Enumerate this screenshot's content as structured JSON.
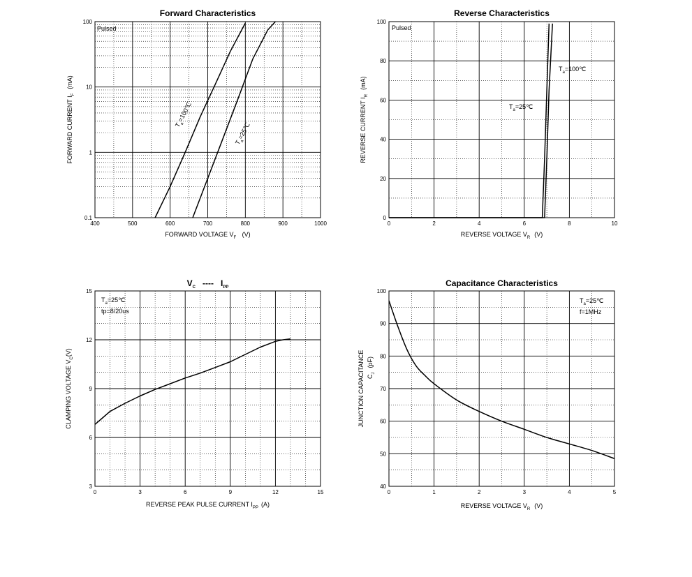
{
  "chart_data": [
    {
      "type": "line",
      "title": "Forward   Characteristics",
      "xlabel": "FORWARD VOLTAGE    V",
      "xlabel_sub": "F",
      "xlabel_unit": "(V)",
      "ylabel": "FORWARD CURRENT    I",
      "ylabel_sub": "F",
      "ylabel_unit": "(mA)",
      "yscale": "log",
      "xlim": [
        400,
        1000
      ],
      "ylim": [
        0.1,
        100
      ],
      "x_ticks": [
        "400",
        "500",
        "600",
        "700",
        "800",
        "900",
        "1000"
      ],
      "y_ticks": [
        "0.1",
        "1",
        "10",
        "100"
      ],
      "note": "Pulsed",
      "series": [
        {
          "label_main": "T",
          "label_sub": "a",
          "label_rest": "=100℃",
          "x": [
            560,
            600,
            640,
            680,
            720,
            760,
            800
          ],
          "y": [
            0.1,
            0.3,
            1,
            3.5,
            11,
            35,
            95
          ]
        },
        {
          "label_main": "T",
          "label_sub": "a",
          "label_rest": "=25℃",
          "x": [
            660,
            700,
            740,
            780,
            820,
            860,
            880
          ],
          "y": [
            0.1,
            0.4,
            1.6,
            6.5,
            27,
            75,
            100
          ]
        }
      ],
      "grid": true
    },
    {
      "type": "line",
      "title": "Reverse   Characteristics",
      "xlabel": "REVERSE VOLTAGE    V",
      "xlabel_sub": "R",
      "xlabel_unit": "(V)",
      "ylabel": "REVERSE CURRENT    I",
      "ylabel_sub": "R",
      "ylabel_unit": "(mA)",
      "xlim": [
        0,
        10
      ],
      "ylim": [
        0,
        100
      ],
      "x_ticks": [
        "0",
        "2",
        "4",
        "6",
        "8",
        "10"
      ],
      "y_ticks": [
        "0",
        "20",
        "40",
        "60",
        "80",
        "100"
      ],
      "note": "Pulsed",
      "series": [
        {
          "label_main": "T",
          "label_sub": "a",
          "label_rest": "=25℃",
          "x": [
            0,
            6.8,
            6.9,
            7.0,
            7.1
          ],
          "y": [
            0,
            0,
            30,
            65,
            99
          ]
        },
        {
          "label_main": "T",
          "label_sub": "a",
          "label_rest": "=100℃",
          "x": [
            0,
            6.9,
            7.0,
            7.1,
            7.25
          ],
          "y": [
            0,
            0,
            30,
            65,
            99
          ]
        }
      ],
      "grid": true
    },
    {
      "type": "line",
      "title_main": "V",
      "title_main_sub": "C",
      "title_sep": "----",
      "title_second": "I",
      "title_second_sub": "PP",
      "xlabel": "REVERSE PEAK PULSE CURRENT   I",
      "xlabel_sub": "PP",
      "xlabel_unit": "(A)",
      "ylabel": "CLAMPING VOLTAGE  V",
      "ylabel_sub": "C",
      "ylabel_unit": "(V)",
      "xlim": [
        0,
        15
      ],
      "ylim": [
        3,
        15
      ],
      "x_ticks": [
        "0",
        "3",
        "6",
        "9",
        "12",
        "15"
      ],
      "y_ticks": [
        "3",
        "6",
        "9",
        "12",
        "15"
      ],
      "note_line1_main": "T",
      "note_line1_sub": "a",
      "note_line1_rest": "=25℃",
      "note_line2": "tp=8/20us",
      "series": [
        {
          "x": [
            0,
            0.5,
            1,
            2,
            3,
            4,
            5,
            6,
            7,
            8,
            9,
            10,
            11,
            12,
            12.5,
            13
          ],
          "y": [
            6.8,
            7.2,
            7.6,
            8.1,
            8.55,
            8.95,
            9.3,
            9.65,
            9.95,
            10.3,
            10.65,
            11.1,
            11.55,
            11.9,
            12.0,
            12.05
          ]
        }
      ],
      "grid": true
    },
    {
      "type": "line",
      "title": "Capacitance Characteristics",
      "xlabel": "REVERSE VOLTAGE    V",
      "xlabel_sub": "R",
      "xlabel_unit": "(V)",
      "ylabel": "JUNCTION CAPACITANCE",
      "ylabel2_main": "C",
      "ylabel2_sub": "J",
      "ylabel2_unit": "(pF)",
      "xlim": [
        0,
        5
      ],
      "ylim": [
        40,
        100
      ],
      "x_ticks": [
        "0",
        "1",
        "2",
        "3",
        "4",
        "5"
      ],
      "y_ticks": [
        "40",
        "50",
        "60",
        "70",
        "80",
        "90",
        "100"
      ],
      "note_line1_main": "T",
      "note_line1_sub": "a",
      "note_line1_rest": "=25℃",
      "note_line2": "f=1MHz",
      "series": [
        {
          "x": [
            0,
            0.2,
            0.4,
            0.6,
            0.8,
            1.0,
            1.5,
            2.0,
            2.5,
            3.0,
            3.5,
            4.0,
            4.5,
            5.0
          ],
          "y": [
            97,
            89,
            82,
            77,
            74,
            71.5,
            66.5,
            63,
            60,
            57.5,
            55,
            53,
            51,
            48.5
          ]
        }
      ],
      "grid": true
    }
  ]
}
